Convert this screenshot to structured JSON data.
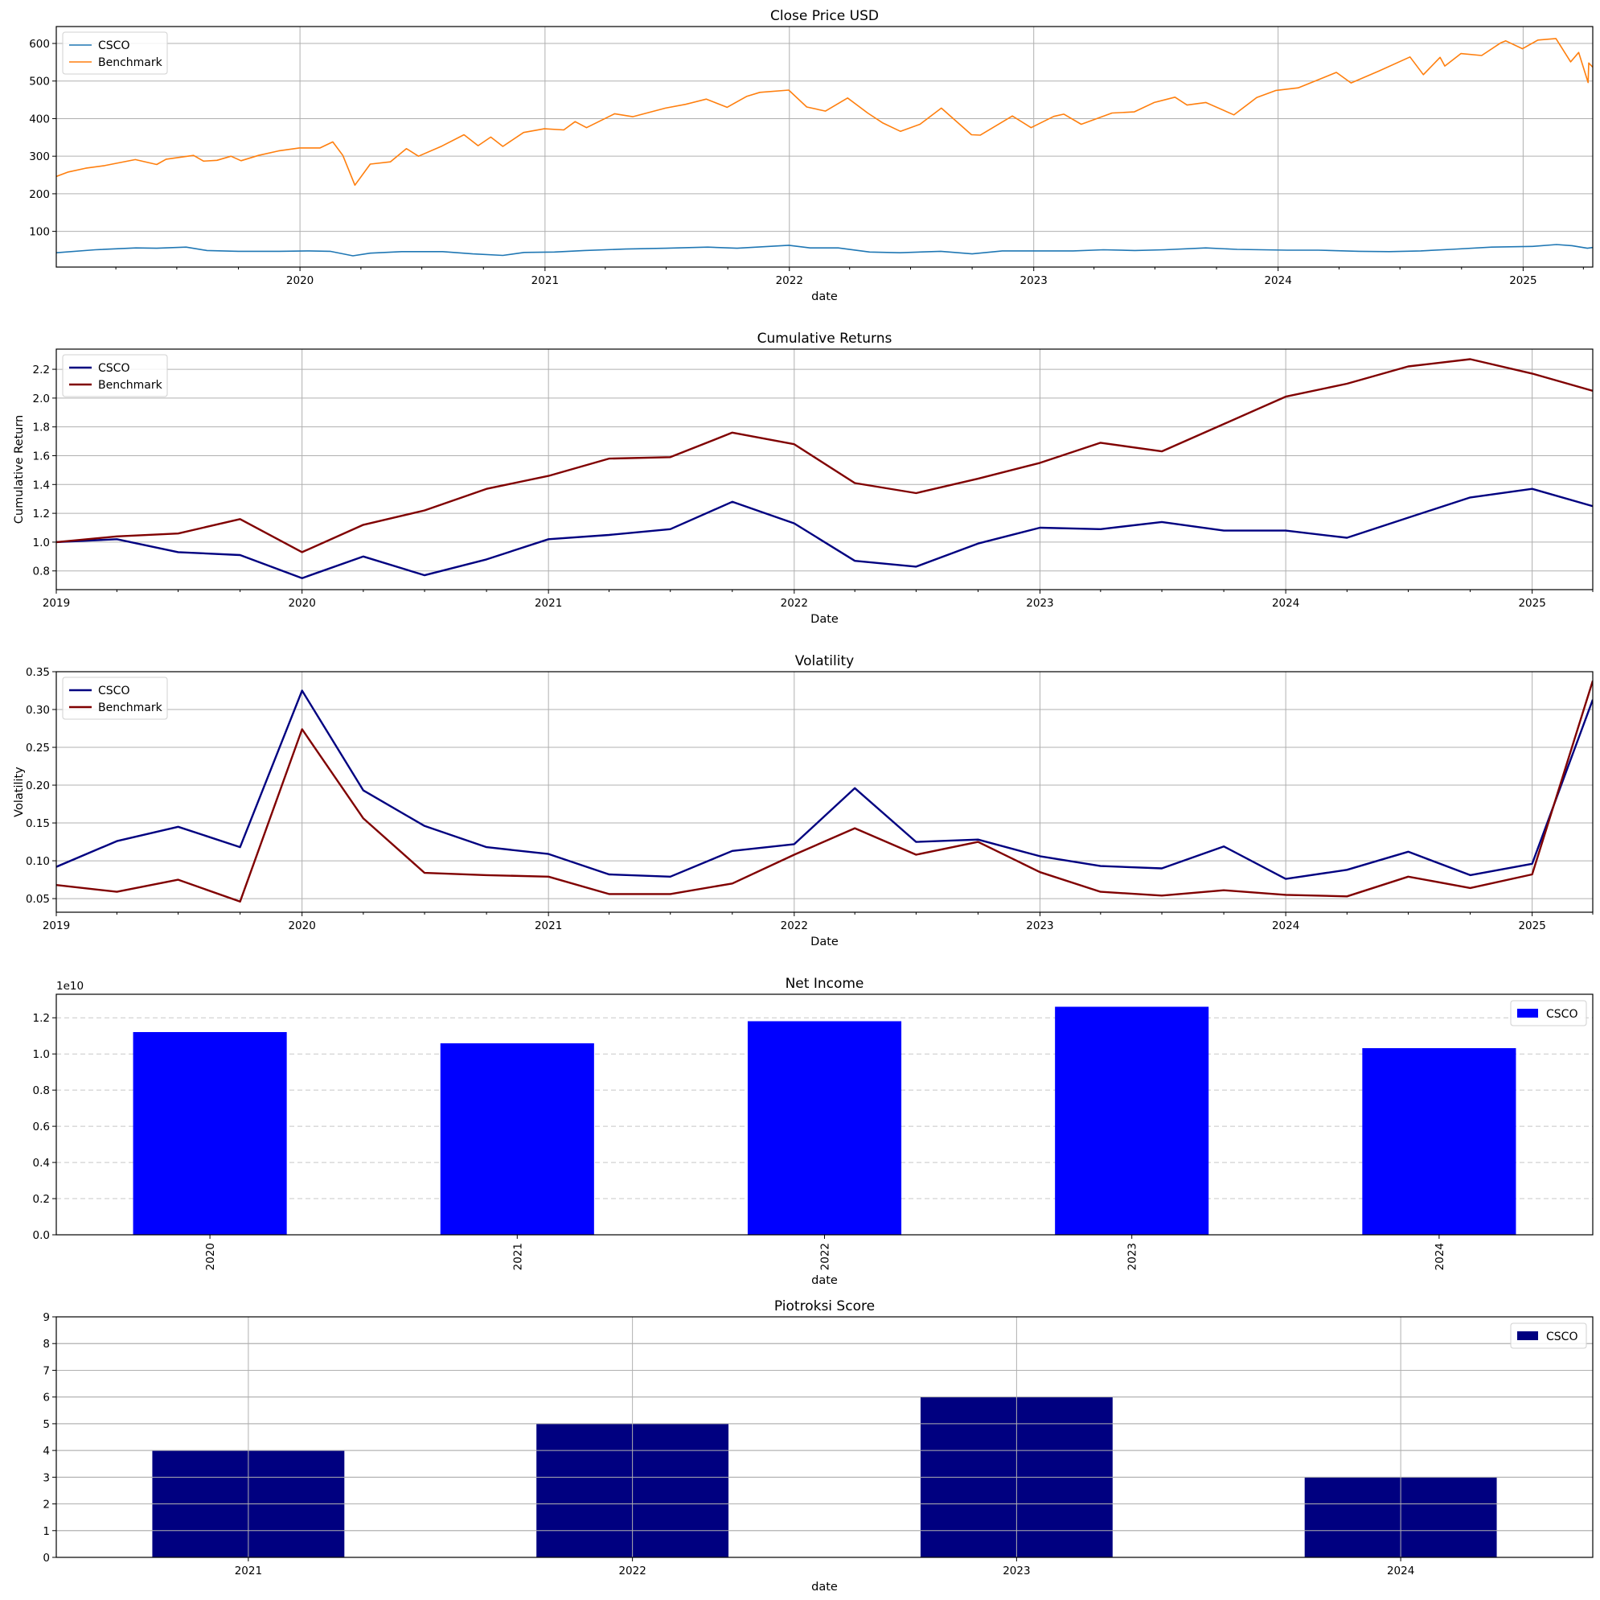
{
  "colors": {
    "csco_price": "#1f77b4",
    "benchmark_price": "#ff7f0e",
    "csco_dark": "#000080",
    "benchmark_dark": "#800000",
    "net_income_bar": "#0000ff",
    "piotroski_bar": "#000080",
    "grid": "#b0b0b0"
  },
  "chart_data": [
    {
      "id": "close-price",
      "type": "line",
      "title": "Close Price USD",
      "xlabel": "date",
      "ylabel": "",
      "x_axis": "date",
      "xlim": [
        "2019-01-02",
        "2025-04-15"
      ],
      "ylim": [
        5,
        645
      ],
      "yticks": [
        100,
        200,
        300,
        400,
        500,
        600
      ],
      "xticks": [
        "2020",
        "2021",
        "2022",
        "2023",
        "2024",
        "2025"
      ],
      "grid": "both",
      "legend": "upper-left",
      "series": [
        {
          "name": "CSCO",
          "color": "#1f77b4",
          "width": 1.6,
          "points": [
            [
              "2019-01-02",
              43
            ],
            [
              "2019-03-01",
              51
            ],
            [
              "2019-05-01",
              56
            ],
            [
              "2019-06-01",
              55
            ],
            [
              "2019-07-15",
              58
            ],
            [
              "2019-08-15",
              49
            ],
            [
              "2019-10-01",
              47
            ],
            [
              "2019-12-01",
              47
            ],
            [
              "2020-01-15",
              48
            ],
            [
              "2020-02-15",
              47
            ],
            [
              "2020-03-20",
              35
            ],
            [
              "2020-04-15",
              42
            ],
            [
              "2020-06-01",
              46
            ],
            [
              "2020-08-01",
              46
            ],
            [
              "2020-09-15",
              40
            ],
            [
              "2020-10-30",
              36
            ],
            [
              "2020-12-01",
              44
            ],
            [
              "2021-01-15",
              45
            ],
            [
              "2021-03-01",
              49
            ],
            [
              "2021-05-01",
              53
            ],
            [
              "2021-07-01",
              55
            ],
            [
              "2021-09-01",
              58
            ],
            [
              "2021-10-15",
              55
            ],
            [
              "2021-12-31",
              63
            ],
            [
              "2022-02-01",
              56
            ],
            [
              "2022-03-15",
              56
            ],
            [
              "2022-05-01",
              45
            ],
            [
              "2022-06-15",
              43
            ],
            [
              "2022-08-15",
              47
            ],
            [
              "2022-10-01",
              40
            ],
            [
              "2022-11-15",
              48
            ],
            [
              "2023-01-15",
              48
            ],
            [
              "2023-03-01",
              48
            ],
            [
              "2023-04-15",
              51
            ],
            [
              "2023-06-01",
              49
            ],
            [
              "2023-07-15",
              51
            ],
            [
              "2023-09-15",
              56
            ],
            [
              "2023-11-01",
              52
            ],
            [
              "2024-01-15",
              50
            ],
            [
              "2024-03-01",
              50
            ],
            [
              "2024-05-01",
              47
            ],
            [
              "2024-06-15",
              46
            ],
            [
              "2024-08-01",
              48
            ],
            [
              "2024-09-15",
              52
            ],
            [
              "2024-11-15",
              58
            ],
            [
              "2025-01-15",
              60
            ],
            [
              "2025-02-20",
              65
            ],
            [
              "2025-03-15",
              62
            ],
            [
              "2025-04-07",
              55
            ],
            [
              "2025-04-15",
              57
            ]
          ]
        },
        {
          "name": "Benchmark",
          "color": "#ff7f0e",
          "width": 1.6,
          "points": [
            [
              "2019-01-02",
              246
            ],
            [
              "2019-01-20",
              258
            ],
            [
              "2019-02-15",
              268
            ],
            [
              "2019-03-15",
              275
            ],
            [
              "2019-04-30",
              291
            ],
            [
              "2019-06-01",
              278
            ],
            [
              "2019-06-15",
              292
            ],
            [
              "2019-07-26",
              302
            ],
            [
              "2019-08-10",
              287
            ],
            [
              "2019-08-30",
              289
            ],
            [
              "2019-09-20",
              300
            ],
            [
              "2019-10-05",
              288
            ],
            [
              "2019-10-31",
              302
            ],
            [
              "2019-11-30",
              314
            ],
            [
              "2019-12-31",
              322
            ],
            [
              "2020-01-31",
              322
            ],
            [
              "2020-02-19",
              338
            ],
            [
              "2020-03-05",
              302
            ],
            [
              "2020-03-23",
              223
            ],
            [
              "2020-04-15",
              279
            ],
            [
              "2020-05-15",
              285
            ],
            [
              "2020-06-08",
              320
            ],
            [
              "2020-06-26",
              300
            ],
            [
              "2020-07-31",
              327
            ],
            [
              "2020-09-02",
              357
            ],
            [
              "2020-09-23",
              328
            ],
            [
              "2020-10-12",
              351
            ],
            [
              "2020-10-30",
              326
            ],
            [
              "2020-11-30",
              363
            ],
            [
              "2020-12-31",
              373
            ],
            [
              "2021-01-29",
              370
            ],
            [
              "2021-02-15",
              392
            ],
            [
              "2021-03-04",
              376
            ],
            [
              "2021-04-15",
              413
            ],
            [
              "2021-05-12",
              405
            ],
            [
              "2021-06-30",
              428
            ],
            [
              "2021-07-30",
              438
            ],
            [
              "2021-08-30",
              452
            ],
            [
              "2021-09-30",
              430
            ],
            [
              "2021-10-29",
              459
            ],
            [
              "2021-11-18",
              470
            ],
            [
              "2021-12-31",
              476
            ],
            [
              "2022-01-27",
              431
            ],
            [
              "2022-02-24",
              420
            ],
            [
              "2022-03-29",
              455
            ],
            [
              "2022-04-28",
              415
            ],
            [
              "2022-05-20",
              389
            ],
            [
              "2022-06-16",
              366
            ],
            [
              "2022-07-15",
              385
            ],
            [
              "2022-08-16",
              428
            ],
            [
              "2022-09-30",
              357
            ],
            [
              "2022-10-13",
              356
            ],
            [
              "2022-11-30",
              407
            ],
            [
              "2022-12-28",
              376
            ],
            [
              "2023-01-31",
              406
            ],
            [
              "2023-02-15",
              412
            ],
            [
              "2023-03-13",
              385
            ],
            [
              "2023-04-28",
              415
            ],
            [
              "2023-05-31",
              418
            ],
            [
              "2023-06-30",
              443
            ],
            [
              "2023-07-31",
              457
            ],
            [
              "2023-08-18",
              436
            ],
            [
              "2023-09-15",
              443
            ],
            [
              "2023-10-27",
              410
            ],
            [
              "2023-11-30",
              456
            ],
            [
              "2023-12-29",
              475
            ],
            [
              "2024-01-31",
              482
            ],
            [
              "2024-03-28",
              523
            ],
            [
              "2024-04-19",
              495
            ],
            [
              "2024-05-31",
              527
            ],
            [
              "2024-07-16",
              564
            ],
            [
              "2024-08-05",
              517
            ],
            [
              "2024-08-30",
              563
            ],
            [
              "2024-09-06",
              540
            ],
            [
              "2024-09-30",
              573
            ],
            [
              "2024-10-31",
              568
            ],
            [
              "2024-11-29",
              602
            ],
            [
              "2024-12-06",
              607
            ],
            [
              "2024-12-31",
              586
            ],
            [
              "2025-01-23",
              609
            ],
            [
              "2025-02-19",
              613
            ],
            [
              "2025-03-13",
              551
            ],
            [
              "2025-03-25",
              576
            ],
            [
              "2025-04-08",
              496
            ],
            [
              "2025-04-09",
              548
            ],
            [
              "2025-04-15",
              537
            ]
          ]
        }
      ]
    },
    {
      "id": "cumulative-returns",
      "type": "line",
      "title": "Cumulative Returns",
      "xlabel": "Date",
      "ylabel": "Cumulative Return",
      "x_axis": "date",
      "xlim": [
        "2019-01-01",
        "2025-04-01"
      ],
      "ylim": [
        0.67,
        2.34
      ],
      "yticks": [
        0.8,
        1.0,
        1.2,
        1.4,
        1.6,
        1.8,
        2.0,
        2.2
      ],
      "xticks": [
        "2019",
        "2020",
        "2021",
        "2022",
        "2023",
        "2024",
        "2025"
      ],
      "grid": "both",
      "legend": "upper-left",
      "x": [
        "2019-01-01",
        "2019-04-01",
        "2019-07-01",
        "2019-10-01",
        "2020-01-01",
        "2020-04-01",
        "2020-07-01",
        "2020-10-01",
        "2021-01-01",
        "2021-04-01",
        "2021-07-01",
        "2021-10-01",
        "2022-01-01",
        "2022-04-01",
        "2022-07-01",
        "2022-10-01",
        "2023-01-01",
        "2023-04-01",
        "2023-07-01",
        "2023-10-01",
        "2024-01-01",
        "2024-04-01",
        "2024-07-01",
        "2024-10-01",
        "2025-01-01",
        "2025-04-01"
      ],
      "series": [
        {
          "name": "CSCO",
          "color": "#000080",
          "width": 2.4,
          "values": [
            1.0,
            1.02,
            0.93,
            0.91,
            0.75,
            0.9,
            0.77,
            0.88,
            1.02,
            1.05,
            1.09,
            1.28,
            1.13,
            0.87,
            0.83,
            0.99,
            1.1,
            1.09,
            1.14,
            1.08,
            1.08,
            1.03,
            1.17,
            1.31,
            1.37,
            1.25
          ]
        },
        {
          "name": "Benchmark",
          "color": "#800000",
          "width": 2.4,
          "values": [
            1.0,
            1.04,
            1.06,
            1.16,
            0.93,
            1.12,
            1.22,
            1.37,
            1.46,
            1.58,
            1.59,
            1.76,
            1.68,
            1.41,
            1.34,
            1.44,
            1.55,
            1.69,
            1.63,
            1.82,
            2.01,
            2.1,
            2.22,
            2.27,
            2.17,
            2.05
          ]
        }
      ]
    },
    {
      "id": "volatility",
      "type": "line",
      "title": "Volatility",
      "xlabel": "Date",
      "ylabel": "Volatility",
      "x_axis": "date",
      "xlim": [
        "2019-01-01",
        "2025-04-01"
      ],
      "ylim": [
        0.032,
        0.35
      ],
      "yticks": [
        0.05,
        0.1,
        0.15,
        0.2,
        0.25,
        0.3,
        0.35
      ],
      "xticks": [
        "2019",
        "2020",
        "2021",
        "2022",
        "2023",
        "2024",
        "2025"
      ],
      "grid": "both",
      "legend": "upper-left",
      "x": [
        "2019-01-01",
        "2019-04-01",
        "2019-07-01",
        "2019-10-01",
        "2020-01-01",
        "2020-04-01",
        "2020-07-01",
        "2020-10-01",
        "2021-01-01",
        "2021-04-01",
        "2021-07-01",
        "2021-10-01",
        "2022-01-01",
        "2022-04-01",
        "2022-07-01",
        "2022-10-01",
        "2023-01-01",
        "2023-04-01",
        "2023-07-01",
        "2023-10-01",
        "2024-01-01",
        "2024-04-01",
        "2024-07-01",
        "2024-10-01",
        "2025-01-01",
        "2025-04-01"
      ],
      "series": [
        {
          "name": "CSCO",
          "color": "#000080",
          "width": 2.4,
          "values": [
            0.092,
            0.126,
            0.145,
            0.118,
            0.325,
            0.193,
            0.146,
            0.118,
            0.109,
            0.082,
            0.079,
            0.113,
            0.122,
            0.196,
            0.125,
            0.128,
            0.106,
            0.093,
            0.09,
            0.119,
            0.076,
            0.088,
            0.112,
            0.081,
            0.096,
            0.313
          ]
        },
        {
          "name": "Benchmark",
          "color": "#800000",
          "width": 2.4,
          "values": [
            0.068,
            0.059,
            0.075,
            0.046,
            0.274,
            0.156,
            0.084,
            0.081,
            0.079,
            0.056,
            0.056,
            0.07,
            0.108,
            0.143,
            0.108,
            0.125,
            0.085,
            0.059,
            0.054,
            0.061,
            0.055,
            0.053,
            0.079,
            0.064,
            0.082,
            0.338
          ]
        }
      ]
    },
    {
      "id": "net-income",
      "type": "bar",
      "title": "Net Income",
      "xlabel": "date",
      "ylabel": "",
      "offset_text": "1e10",
      "categories": [
        "2020",
        "2021",
        "2022",
        "2023",
        "2024"
      ],
      "ylim": [
        0,
        1.33
      ],
      "yticks": [
        0.0,
        0.2,
        0.4,
        0.6,
        0.8,
        1.0,
        1.2
      ],
      "ytick_decimals": 1,
      "tick_rotation": -90,
      "grid": "y-dashed",
      "legend": "upper-right",
      "series": [
        {
          "name": "CSCO",
          "color": "#0000ff",
          "values": [
            1.121,
            1.059,
            1.181,
            1.261,
            1.032
          ]
        }
      ]
    },
    {
      "id": "piotroski-score",
      "type": "bar",
      "title": "Piotroksi Score",
      "xlabel": "date",
      "ylabel": "",
      "categories": [
        "2021",
        "2022",
        "2023",
        "2024"
      ],
      "ylim": [
        0,
        9
      ],
      "yticks": [
        0,
        1,
        2,
        3,
        4,
        5,
        6,
        7,
        8,
        9
      ],
      "ytick_decimals": 0,
      "tick_rotation": 0,
      "grid": "both",
      "grid_over_bars": true,
      "legend": "upper-right",
      "series": [
        {
          "name": "CSCO",
          "color": "#000080",
          "values": [
            4,
            5,
            6,
            3
          ]
        }
      ]
    }
  ]
}
